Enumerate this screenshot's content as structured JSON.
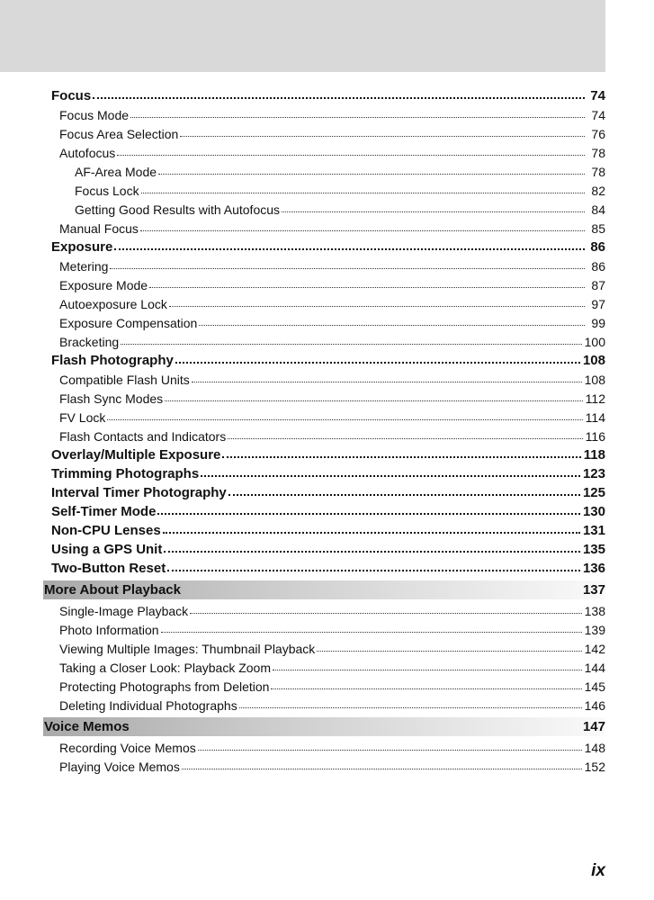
{
  "entries": [
    {
      "level": 1,
      "title": "Focus",
      "page": "74"
    },
    {
      "level": 2,
      "title": "Focus Mode",
      "page": "74"
    },
    {
      "level": 2,
      "title": "Focus Area Selection",
      "page": "76"
    },
    {
      "level": 2,
      "title": "Autofocus",
      "page": "78"
    },
    {
      "level": 3,
      "title": "AF-Area Mode",
      "page": "78"
    },
    {
      "level": 3,
      "title": "Focus Lock",
      "page": "82"
    },
    {
      "level": 3,
      "title": "Getting Good Results with Autofocus",
      "page": "84"
    },
    {
      "level": 2,
      "title": "Manual Focus",
      "page": "85"
    },
    {
      "level": 1,
      "title": "Exposure",
      "page": "86"
    },
    {
      "level": 2,
      "title": "Metering",
      "page": "86"
    },
    {
      "level": 2,
      "title": "Exposure Mode",
      "page": "87"
    },
    {
      "level": 2,
      "title": "Autoexposure Lock",
      "page": "97"
    },
    {
      "level": 2,
      "title": "Exposure Compensation",
      "page": "99"
    },
    {
      "level": 2,
      "title": "Bracketing",
      "page": "100"
    },
    {
      "level": 1,
      "title": "Flash Photography",
      "page": "108"
    },
    {
      "level": 2,
      "title": "Compatible Flash Units",
      "page": "108"
    },
    {
      "level": 2,
      "title": "Flash Sync Modes",
      "page": "112"
    },
    {
      "level": 2,
      "title": "FV Lock",
      "page": "114"
    },
    {
      "level": 2,
      "title": "Flash Contacts and Indicators",
      "page": "116"
    },
    {
      "level": 1,
      "title": "Overlay/Multiple Exposure",
      "page": "118"
    },
    {
      "level": 1,
      "title": "Trimming Photographs",
      "page": "123"
    },
    {
      "level": 1,
      "title": "Interval Timer Photography",
      "page": "125"
    },
    {
      "level": 1,
      "title": "Self-Timer Mode",
      "page": "130"
    },
    {
      "level": 1,
      "title": "Non-CPU Lenses",
      "page": "131"
    },
    {
      "level": 1,
      "title": "Using a GPS Unit",
      "page": "135"
    },
    {
      "level": 1,
      "title": "Two-Button Reset",
      "page": "136"
    },
    {
      "level": 0,
      "title": "More About Playback",
      "page": "137"
    },
    {
      "level": 2,
      "title": "Single-Image Playback",
      "page": "138"
    },
    {
      "level": 2,
      "title": "Photo Information",
      "page": "139"
    },
    {
      "level": 2,
      "title": "Viewing Multiple Images: Thumbnail Playback",
      "page": "142"
    },
    {
      "level": 2,
      "title": "Taking a Closer Look: Playback Zoom",
      "page": "144"
    },
    {
      "level": 2,
      "title": "Protecting Photographs from Deletion",
      "page": "145"
    },
    {
      "level": 2,
      "title": "Deleting Individual Photographs",
      "page": "146"
    },
    {
      "level": 0,
      "title": "Voice Memos",
      "page": "147"
    },
    {
      "level": 2,
      "title": "Recording Voice Memos",
      "page": "148"
    },
    {
      "level": 2,
      "title": "Playing Voice Memos",
      "page": "152"
    }
  ],
  "folio": "ix",
  "colors": {
    "header_band": "#d9d9d9",
    "section_bar_start": "#a9a9a9",
    "section_bar_end": "#fafafa"
  }
}
